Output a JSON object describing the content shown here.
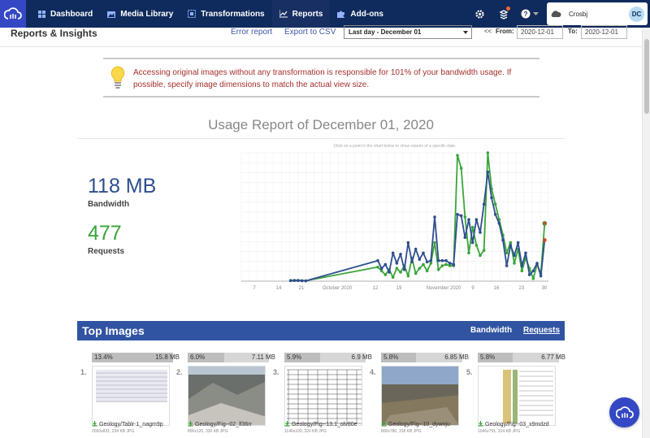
{
  "nav": {
    "items": [
      {
        "label": "Dashboard",
        "icon": "dashboard-icon"
      },
      {
        "label": "Media Library",
        "icon": "media-library-icon"
      },
      {
        "label": "Transformations",
        "icon": "transformations-icon"
      },
      {
        "label": "Reports",
        "icon": "reports-icon",
        "active": true
      },
      {
        "label": "Add-ons",
        "icon": "puzzle-icon"
      }
    ],
    "account_name": "Crosbj",
    "avatar_initials": "DC",
    "colors": {
      "nav_bg": "#0f2a5c",
      "brand": "#3448c5"
    }
  },
  "header": {
    "title": "Reports & Insights",
    "error_report": "Error report",
    "export_csv": "Export to CSV",
    "date_select": "Last day - December 01",
    "prev": "<<",
    "from_label": "From:",
    "from_value": "2020-12-01",
    "to_label": "To:",
    "to_value": "2020-12-01"
  },
  "warning": {
    "text": "Accessing original images without any transformation is responsible for 101% of your bandwidth usage. If possible, specify image dimensions to match the actual view size.",
    "color": "#a4302c"
  },
  "report": {
    "title": "Usage Report of December 01, 2020",
    "bandwidth_value": "118 MB",
    "bandwidth_label": "Bandwidth",
    "requests_value": "477",
    "requests_label": "Requests",
    "chart_hint": "Click on a point in the chart below to show reports of a specific date."
  },
  "chart_data": {
    "type": "line",
    "x_ticks": [
      "7",
      "14",
      "21",
      "October 2020",
      "12",
      "19",
      "November 2020",
      "9",
      "16",
      "23",
      "30"
    ],
    "series": [
      {
        "color": "#3aa53a",
        "values": [
          [
            13,
            0.5
          ],
          [
            14,
            0.6
          ],
          [
            15,
            0.6
          ],
          [
            16,
            0.4
          ],
          [
            17,
            0.3
          ],
          [
            36,
            11
          ],
          [
            37,
            8
          ],
          [
            38,
            5
          ],
          [
            39,
            9
          ],
          [
            40,
            3
          ],
          [
            41,
            10
          ],
          [
            42,
            7
          ],
          [
            43,
            12
          ],
          [
            44,
            4
          ],
          [
            45,
            18
          ],
          [
            46,
            6
          ],
          [
            47,
            10
          ],
          [
            48,
            13
          ],
          [
            49,
            8
          ],
          [
            50,
            14
          ],
          [
            51,
            30
          ],
          [
            52,
            9
          ],
          [
            53,
            12
          ],
          [
            54,
            13
          ],
          [
            55,
            12
          ],
          [
            56,
            12
          ],
          [
            57,
            98
          ],
          [
            58,
            88
          ],
          [
            59,
            50
          ],
          [
            60,
            22
          ],
          [
            61,
            42
          ],
          [
            62,
            28
          ],
          [
            63,
            20
          ],
          [
            64,
            24
          ],
          [
            65,
            100
          ],
          [
            66,
            72
          ],
          [
            67,
            60
          ],
          [
            68,
            48
          ],
          [
            69,
            36
          ],
          [
            70,
            22
          ],
          [
            71,
            30
          ],
          [
            72,
            14
          ],
          [
            73,
            25
          ],
          [
            74,
            8
          ],
          [
            75,
            18
          ],
          [
            76,
            10
          ],
          [
            77,
            2
          ],
          [
            78,
            13
          ],
          [
            79,
            6
          ],
          [
            80,
            45
          ]
        ]
      },
      {
        "color": "#2f4e8f",
        "values": [
          [
            13,
            0.4
          ],
          [
            14,
            0.5
          ],
          [
            15,
            0.5
          ],
          [
            16,
            0.3
          ],
          [
            17,
            0.2
          ],
          [
            36,
            16
          ],
          [
            37,
            10
          ],
          [
            38,
            13
          ],
          [
            39,
            7
          ],
          [
            40,
            22
          ],
          [
            41,
            14
          ],
          [
            42,
            21
          ],
          [
            43,
            9
          ],
          [
            44,
            30
          ],
          [
            45,
            15
          ],
          [
            46,
            25
          ],
          [
            47,
            17
          ],
          [
            48,
            22
          ],
          [
            49,
            15
          ],
          [
            50,
            16
          ],
          [
            51,
            50
          ],
          [
            52,
            16
          ],
          [
            53,
            16
          ],
          [
            54,
            16
          ],
          [
            55,
            14
          ],
          [
            56,
            13
          ],
          [
            57,
            52
          ],
          [
            58,
            51
          ],
          [
            59,
            34
          ],
          [
            60,
            48
          ],
          [
            61,
            30
          ],
          [
            62,
            48
          ],
          [
            63,
            38
          ],
          [
            64,
            60
          ],
          [
            65,
            85
          ],
          [
            66,
            65
          ],
          [
            67,
            52
          ],
          [
            68,
            45
          ],
          [
            69,
            32
          ],
          [
            70,
            12
          ],
          [
            71,
            28
          ],
          [
            72,
            20
          ],
          [
            73,
            30
          ],
          [
            74,
            12
          ],
          [
            75,
            22
          ],
          [
            76,
            5
          ],
          [
            77,
            8
          ],
          [
            78,
            14
          ],
          [
            79,
            4
          ],
          [
            80,
            32
          ]
        ]
      }
    ]
  },
  "top_images": {
    "title": "Top Images",
    "tab_bandwidth": "Bandwidth",
    "tab_requests": "Requests",
    "items": [
      {
        "index": "1.",
        "pct": "13.4%",
        "pct_value": 13.4,
        "size": "15.8 MB",
        "name": "Geology/Tablr-1_nagm9p",
        "meta": "2000x831, 234 KB JPG"
      },
      {
        "index": "2.",
        "pct": "6.0%",
        "pct_value": 6.0,
        "size": "7.11 MB",
        "name": "Geology/Fig--02_lf36rr",
        "meta": "800x120, 330 KB JPG"
      },
      {
        "index": "3.",
        "pct": "5.9%",
        "pct_value": 5.9,
        "size": "6.9 MB",
        "name": "Geology/Fig--13.1_olv80e",
        "meta": "1146x100, 320 KB JPG"
      },
      {
        "index": "4.",
        "pct": "5.8%",
        "pct_value": 5.8,
        "size": "6.85 MB",
        "name": "Geology/Fig--10_dywnju",
        "meta": "800x780, 318 KB JPG"
      },
      {
        "index": "5.",
        "pct": "5.8%",
        "pct_value": 5.8,
        "size": "6.77 MB",
        "name": "Geology/Fig--03_x9mdzd",
        "meta": "1046x791, 314 KB JPG"
      }
    ]
  }
}
